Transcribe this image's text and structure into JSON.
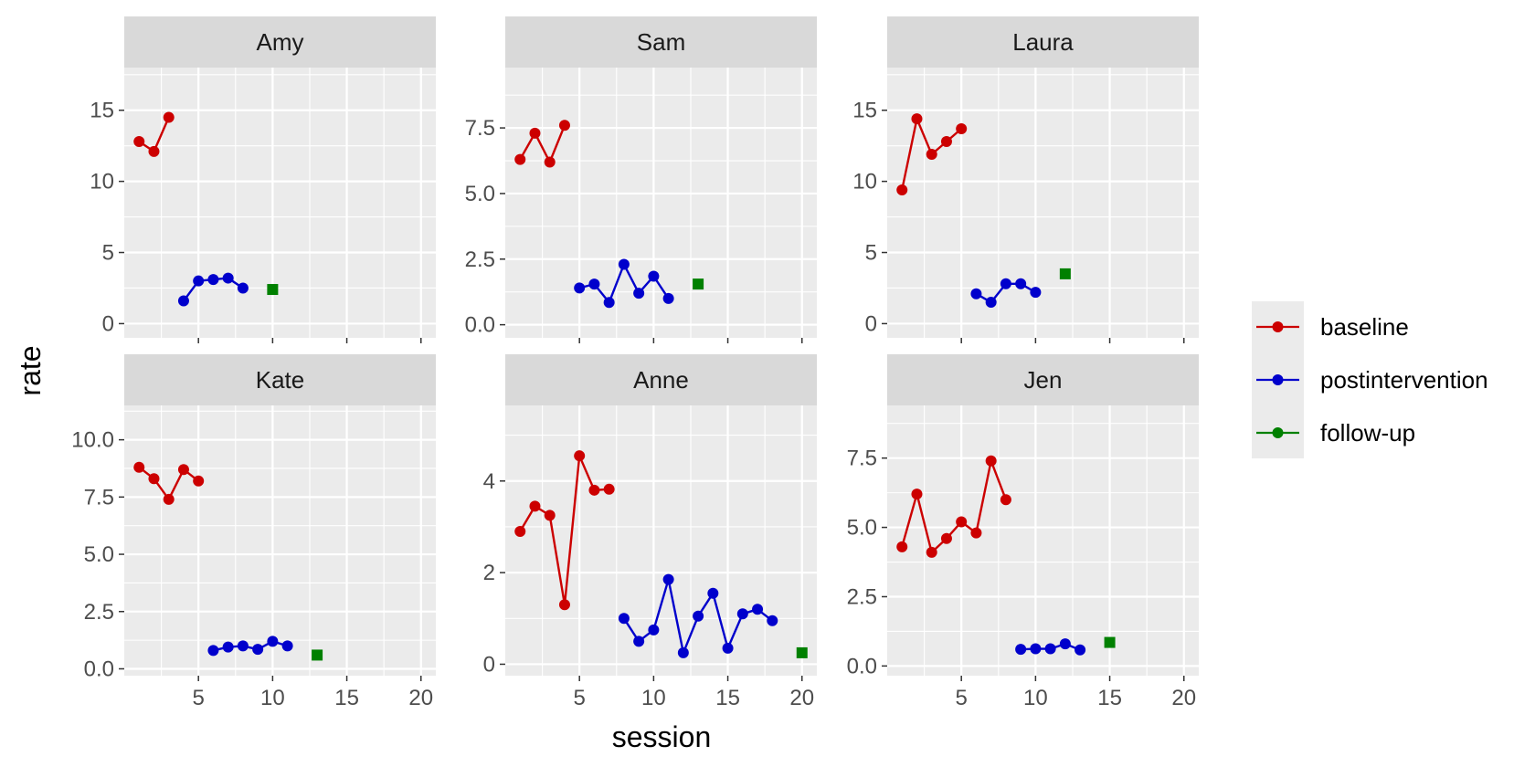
{
  "chart_data": {
    "type": "line",
    "xlabel": "session",
    "ylabel": "rate",
    "xlim": [
      0,
      21
    ],
    "x_ticks": [
      5,
      10,
      15,
      20
    ],
    "grid": true,
    "legend_position": "right",
    "legend": [
      {
        "name": "baseline",
        "color": "#cc0000"
      },
      {
        "name": "postintervention",
        "color": "#0000cc"
      },
      {
        "name": "follow-up",
        "color": "#008000"
      }
    ],
    "panels": [
      {
        "title": "Amy",
        "ylim": [
          -1,
          18
        ],
        "y_ticks": [
          0,
          5,
          10,
          15
        ],
        "y_labels": [
          "0",
          "5",
          "10",
          "15"
        ],
        "series": [
          {
            "phase": "baseline",
            "x": [
              1,
              2,
              3
            ],
            "values": [
              12.8,
              12.1,
              14.5
            ]
          },
          {
            "phase": "postintervention",
            "x": [
              4,
              5,
              6,
              7,
              8
            ],
            "values": [
              1.6,
              3.0,
              3.1,
              3.2,
              2.5
            ]
          },
          {
            "phase": "follow-up",
            "x": [
              10
            ],
            "values": [
              2.4
            ]
          }
        ]
      },
      {
        "title": "Sam",
        "ylim": [
          -0.5,
          9.8
        ],
        "y_ticks": [
          0,
          2.5,
          5,
          7.5
        ],
        "y_labels": [
          "0.0",
          "2.5",
          "5.0",
          "7.5"
        ],
        "series": [
          {
            "phase": "baseline",
            "x": [
              1,
              2,
              3,
              4
            ],
            "values": [
              6.3,
              7.3,
              6.2,
              7.6
            ]
          },
          {
            "phase": "postintervention",
            "x": [
              5,
              6,
              7,
              8,
              9,
              10,
              11
            ],
            "values": [
              1.4,
              1.55,
              0.85,
              2.3,
              1.2,
              1.85,
              1.0
            ]
          },
          {
            "phase": "follow-up",
            "x": [
              13
            ],
            "values": [
              1.55
            ]
          }
        ]
      },
      {
        "title": "Laura",
        "ylim": [
          -1,
          18
        ],
        "y_ticks": [
          0,
          5,
          10,
          15
        ],
        "y_labels": [
          "0",
          "5",
          "10",
          "15"
        ],
        "series": [
          {
            "phase": "baseline",
            "x": [
              1,
              2,
              3,
              4,
              5
            ],
            "values": [
              9.4,
              14.4,
              11.9,
              12.8,
              13.7
            ]
          },
          {
            "phase": "postintervention",
            "x": [
              6,
              7,
              8,
              9,
              10
            ],
            "values": [
              2.1,
              1.5,
              2.8,
              2.8,
              2.2
            ]
          },
          {
            "phase": "follow-up",
            "x": [
              12
            ],
            "values": [
              3.5
            ]
          }
        ]
      },
      {
        "title": "Kate",
        "ylim": [
          -0.3,
          11.5
        ],
        "y_ticks": [
          0,
          2.5,
          5,
          7.5,
          10
        ],
        "y_labels": [
          "0.0",
          "2.5",
          "5.0",
          "7.5",
          "10.0"
        ],
        "series": [
          {
            "phase": "baseline",
            "x": [
              1,
              2,
              3,
              4,
              5
            ],
            "values": [
              8.8,
              8.3,
              7.4,
              8.7,
              8.2
            ]
          },
          {
            "phase": "postintervention",
            "x": [
              6,
              7,
              8,
              9,
              10,
              11
            ],
            "values": [
              0.8,
              0.95,
              1.0,
              0.85,
              1.2,
              1.0
            ]
          },
          {
            "phase": "follow-up",
            "x": [
              13
            ],
            "values": [
              0.6
            ]
          }
        ]
      },
      {
        "title": "Anne",
        "ylim": [
          -0.25,
          5.65
        ],
        "y_ticks": [
          0,
          2,
          4
        ],
        "y_labels": [
          "0",
          "2",
          "4"
        ],
        "series": [
          {
            "phase": "baseline",
            "x": [
              1,
              2,
              3,
              4,
              5,
              6,
              7
            ],
            "values": [
              2.9,
              3.45,
              3.25,
              1.3,
              4.55,
              3.8,
              3.82
            ]
          },
          {
            "phase": "postintervention",
            "x": [
              8,
              9,
              10,
              11,
              12,
              13,
              14,
              15,
              16,
              17,
              18
            ],
            "values": [
              1.0,
              0.5,
              0.75,
              1.85,
              0.25,
              1.05,
              1.55,
              0.35,
              1.1,
              1.2,
              0.95
            ]
          },
          {
            "phase": "follow-up",
            "x": [
              20
            ],
            "values": [
              0.25
            ]
          }
        ]
      },
      {
        "title": "Jen",
        "ylim": [
          -0.35,
          9.4
        ],
        "y_ticks": [
          0,
          2.5,
          5,
          7.5
        ],
        "y_labels": [
          "0.0",
          "2.5",
          "5.0",
          "7.5"
        ],
        "series": [
          {
            "phase": "baseline",
            "x": [
              1,
              2,
              3,
              4,
              5,
              6,
              7,
              8
            ],
            "values": [
              4.3,
              6.2,
              4.1,
              4.6,
              5.2,
              4.8,
              7.4,
              6.0
            ]
          },
          {
            "phase": "postintervention",
            "x": [
              9,
              10,
              11,
              12,
              13
            ],
            "values": [
              0.6,
              0.62,
              0.62,
              0.8,
              0.58
            ]
          },
          {
            "phase": "follow-up",
            "x": [
              15
            ],
            "values": [
              0.85
            ]
          }
        ]
      }
    ]
  }
}
